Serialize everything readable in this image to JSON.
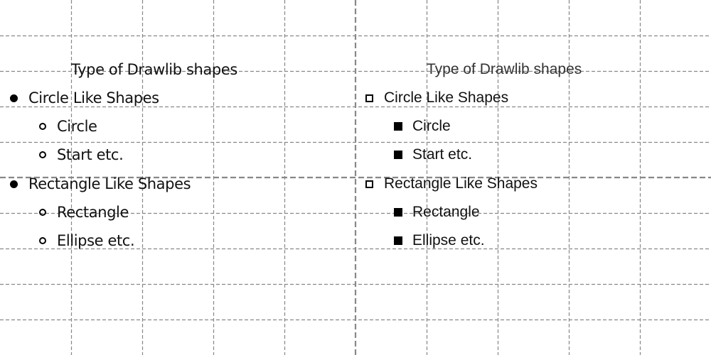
{
  "grid": {
    "line_color": "#888888",
    "minor_interval": 100,
    "major_interval": 500
  },
  "left_panel": {
    "heading": "Type of Drawlib shapes",
    "list_style": {
      "level1_marker": "filled-circle-bullet",
      "level2_marker": "hollow-circle-bullet"
    },
    "groups": [
      {
        "label": "Circle Like Shapes",
        "children": [
          "Circle",
          "Start etc."
        ]
      },
      {
        "label": "Rectangle Like Shapes",
        "children": [
          "Rectangle",
          "Ellipse etc."
        ]
      }
    ]
  },
  "right_panel": {
    "heading": "Type of Drawlib shapes",
    "list_style": {
      "level1_marker": "hollow-square-bullet",
      "level2_marker": "filled-square-bullet"
    },
    "groups": [
      {
        "label": "Circle Like Shapes",
        "children": [
          "Circle",
          "Start etc."
        ]
      },
      {
        "label": "Rectangle Like Shapes",
        "children": [
          "Rectangle",
          "Ellipse etc."
        ]
      }
    ]
  }
}
